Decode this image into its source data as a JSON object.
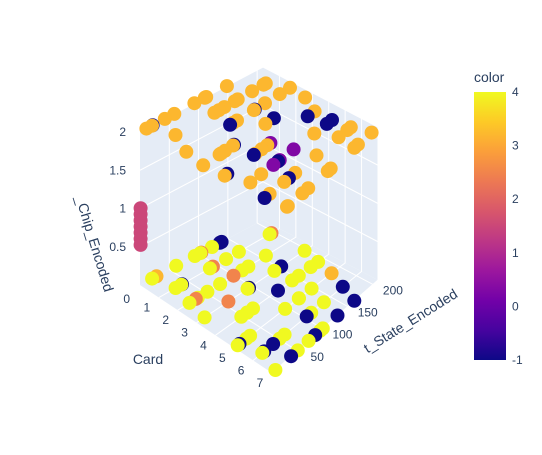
{
  "chart_data": {
    "type": "scatter3d",
    "axes": {
      "x": {
        "label": "Card",
        "range": [
          0,
          7
        ],
        "ticks": [
          "0",
          "1",
          "2",
          "3",
          "4",
          "5",
          "6",
          "7"
        ]
      },
      "y": {
        "label": "t_State_Encoded",
        "range": [
          0,
          210
        ],
        "ticks": [
          "50",
          "100",
          "150",
          "200"
        ]
      },
      "z": {
        "label": "_Chip_Encoded",
        "range": [
          0,
          2
        ],
        "ticks": [
          "0.5",
          "1",
          "1.5",
          "2"
        ]
      }
    },
    "colorbar": {
      "title": "color",
      "range": [
        -1,
        4
      ],
      "ticks": [
        "-1",
        "0",
        "1",
        "2",
        "3",
        "4"
      ],
      "colorscale": [
        "#0d0887",
        "#46039f",
        "#7201a8",
        "#9c179e",
        "#bd3786",
        "#d8576b",
        "#ed7953",
        "#fb9f3a",
        "#fdca26",
        "#f0f921"
      ]
    },
    "grid": true,
    "clusters": [
      {
        "z": 2,
        "color_value": 3.3,
        "x_range": [
          0,
          7
        ],
        "y_range": [
          0,
          210
        ],
        "note": "top plane, mostly orange with some dark purple points"
      },
      {
        "z": 0,
        "color_value": 4,
        "x_range": [
          0,
          7
        ],
        "y_range": [
          0,
          210
        ],
        "note": "bottom plane, mostly yellow with scattered dark blue and orange points"
      }
    ],
    "points_line": [
      {
        "x": 0,
        "y": 1,
        "z": 1.0,
        "c": 1.5
      },
      {
        "x": 0,
        "y": 1,
        "z": 0.92,
        "c": 1.5
      },
      {
        "x": 0,
        "y": 1,
        "z": 0.84,
        "c": 1.5
      },
      {
        "x": 0,
        "y": 1,
        "z": 0.76,
        "c": 1.5
      },
      {
        "x": 0,
        "y": 1,
        "z": 0.68,
        "c": 1.5
      },
      {
        "x": 0,
        "y": 1,
        "z": 0.6,
        "c": 1.5
      },
      {
        "x": 0,
        "y": 1,
        "z": 0.52,
        "c": 1.5
      }
    ]
  }
}
